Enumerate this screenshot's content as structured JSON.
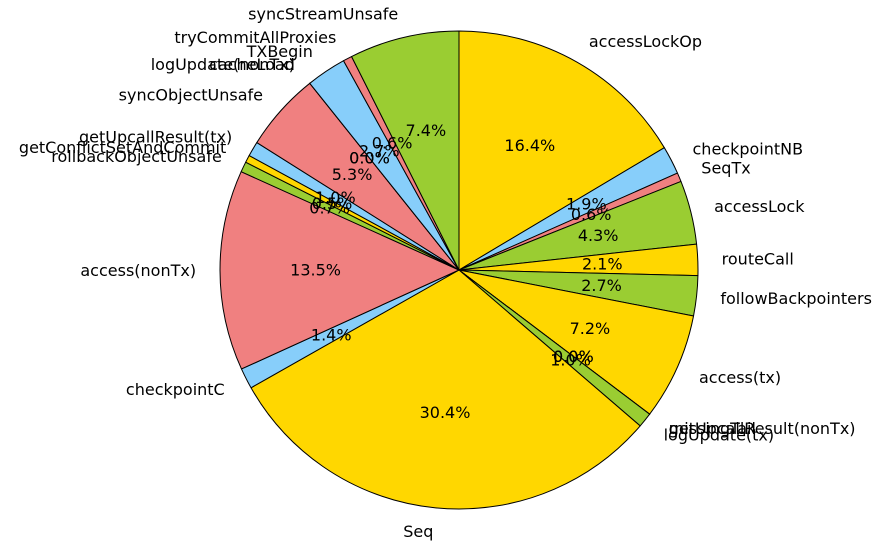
{
  "chart_data": {
    "type": "pie",
    "start_angle_deg": 90,
    "direction": "clockwise",
    "edge_color": "#000000",
    "slices": [
      {
        "label": "accessLockOp",
        "value": 16.4,
        "pct_label": "16.4%",
        "color": "#FFD700"
      },
      {
        "label": "checkpointNB",
        "value": 1.9,
        "pct_label": "1.9%",
        "color": "#87CEFA"
      },
      {
        "label": "SeqTx",
        "value": 0.6,
        "pct_label": "0.6%",
        "color": "#F08080"
      },
      {
        "label": "accessLock",
        "value": 4.3,
        "pct_label": "4.3%",
        "color": "#9ACD32"
      },
      {
        "label": "routeCall",
        "value": 2.1,
        "pct_label": "2.1%",
        "color": "#FFD700"
      },
      {
        "label": "followBackpointers",
        "value": 2.7,
        "pct_label": "2.7%",
        "color": "#9ACD32"
      },
      {
        "label": "access(tx)",
        "value": 7.2,
        "pct_label": "7.2%",
        "color": "#FFD700"
      },
      {
        "label": "getUpcallResult(nonTx)",
        "value": 0.0,
        "pct_label": "0.0%",
        "color": "#87CEFA"
      },
      {
        "label": "missingTail",
        "value": 0.0,
        "pct_label": "0.0%",
        "color": "#F08080"
      },
      {
        "label": "logUpdate(tx)",
        "value": 1.0,
        "pct_label": "1.0%",
        "color": "#9ACD32"
      },
      {
        "label": "Seq",
        "value": 30.4,
        "pct_label": "30.4%",
        "color": "#FFD700"
      },
      {
        "label": "checkpointC",
        "value": 1.4,
        "pct_label": "1.4%",
        "color": "#87CEFA"
      },
      {
        "label": "access(nonTx)",
        "value": 13.5,
        "pct_label": "13.5%",
        "color": "#F08080"
      },
      {
        "label": "rollbackObjectUnsafe",
        "value": 0.7,
        "pct_label": "0.7%",
        "color": "#9ACD32"
      },
      {
        "label": "getConflictSetAndCommit",
        "value": 0.5,
        "pct_label": "0.5%",
        "color": "#FFD700"
      },
      {
        "label": "getUpcallResult(tx)",
        "value": 1.0,
        "pct_label": "1.0%",
        "color": "#87CEFA"
      },
      {
        "label": "syncObjectUnsafe",
        "value": 5.3,
        "pct_label": "5.3%",
        "color": "#F08080"
      },
      {
        "label": "logUpdate(nonTx)",
        "value": 0.0,
        "pct_label": "0.0%",
        "color": "#9ACD32"
      },
      {
        "label": "cacheLoad",
        "value": 0.0,
        "pct_label": "0.0%",
        "color": "#FFD700"
      },
      {
        "label": "TXBegin",
        "value": 2.7,
        "pct_label": "2.7%",
        "color": "#87CEFA"
      },
      {
        "label": "tryCommitAllProxies",
        "value": 0.6,
        "pct_label": "0.6%",
        "color": "#F08080"
      },
      {
        "label": "syncStreamUnsafe",
        "value": 7.4,
        "pct_label": "7.4%",
        "color": "#9ACD32"
      }
    ]
  }
}
